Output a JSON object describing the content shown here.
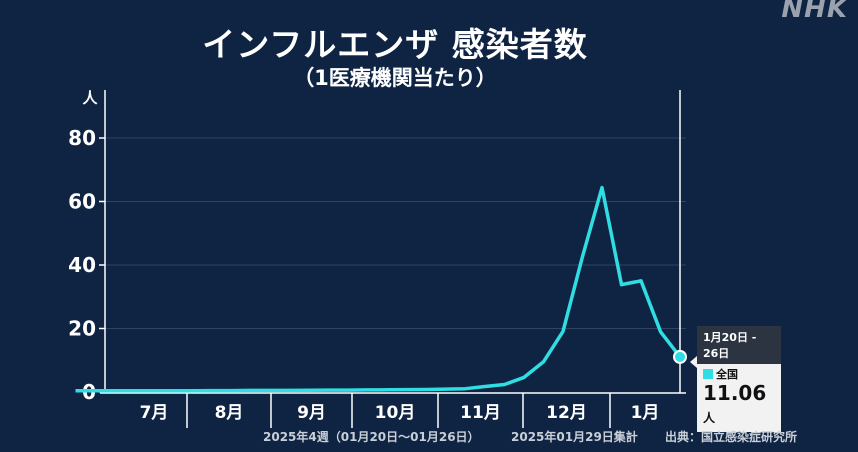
{
  "logo": "NHK",
  "chart_data": {
    "type": "line",
    "title": "インフルエンザ 感染者数",
    "subtitle": "（1医療機関当たり）",
    "ylabel": "人",
    "ylim": [
      0,
      80
    ],
    "yticks": [
      "0",
      "20",
      "40",
      "60",
      "80"
    ],
    "grid": true,
    "month_labels": [
      "7月",
      "8月",
      "9月",
      "10月",
      "11月",
      "12月",
      "1月"
    ],
    "series": [
      {
        "color": "#2fdde3",
        "values": [
          0.4,
          0.4,
          0.4,
          0.4,
          0.4,
          0.4,
          0.4,
          0.45,
          0.45,
          0.5,
          0.5,
          0.5,
          0.55,
          0.6,
          0.6,
          0.65,
          0.7,
          0.75,
          0.8,
          0.9,
          1.04,
          1.73,
          2.36,
          4.59,
          9.52,
          19.06,
          42.66,
          64.39,
          33.82,
          35.02,
          19.0,
          11.06
        ]
      }
    ],
    "tooltip": {
      "period": "1月20日 - 26日",
      "series": "全国",
      "value": "11.06",
      "unit": "人"
    },
    "legend": "none"
  },
  "footer": {
    "week": "2025年4週（01月20日～01月26日）",
    "tally": "2025年01月29日集計",
    "source": "出典：国立感染症研究所"
  }
}
